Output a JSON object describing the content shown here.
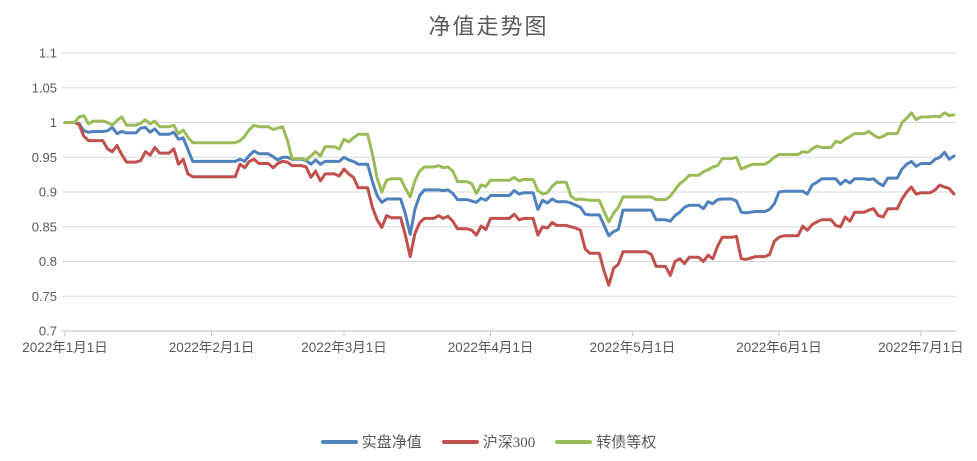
{
  "chart_data": {
    "type": "line",
    "title": "净值走势图",
    "legend_position": "bottom",
    "grid": "horizontal",
    "x_axis": {
      "start_date": "2022-01-01",
      "end_date": "2022-07-08",
      "unit": "calendar-day-index",
      "num_points": 189,
      "tick_day_indices": [
        0,
        31,
        59,
        90,
        120,
        151,
        181
      ],
      "tick_labels": [
        "2022年1月1日",
        "2022年2月1日",
        "2022年3月1日",
        "2022年4月1日",
        "2022年5月1日",
        "2022年6月1日",
        "2022年7月1日"
      ]
    },
    "y_axis": {
      "min": 0.7,
      "max": 1.1,
      "step": 0.05,
      "tick_labels": [
        "0.7",
        "0.75",
        "0.8",
        "0.85",
        "0.9",
        "0.95",
        "1",
        "1.05",
        "1.1"
      ]
    },
    "series": [
      {
        "name": "实盘净值",
        "color": "#4F81BD",
        "values": [
          1.0,
          1.0,
          1.0,
          0.998,
          0.988,
          0.986,
          0.987,
          0.987,
          0.987,
          0.988,
          0.993,
          0.984,
          0.987,
          0.985,
          0.985,
          0.985,
          0.992,
          0.993,
          0.986,
          0.991,
          0.983,
          0.983,
          0.983,
          0.986,
          0.976,
          0.978,
          0.961,
          0.944,
          0.944,
          0.944,
          0.944,
          0.944,
          0.944,
          0.944,
          0.944,
          0.944,
          0.944,
          0.947,
          0.944,
          0.953,
          0.959,
          0.955,
          0.955,
          0.955,
          0.951,
          0.946,
          0.95,
          0.95,
          0.947,
          0.947,
          0.947,
          0.945,
          0.94,
          0.946,
          0.94,
          0.944,
          0.944,
          0.944,
          0.944,
          0.95,
          0.946,
          0.944,
          0.94,
          0.94,
          0.94,
          0.915,
          0.895,
          0.885,
          0.89,
          0.89,
          0.89,
          0.89,
          0.868,
          0.839,
          0.875,
          0.895,
          0.903,
          0.903,
          0.903,
          0.903,
          0.902,
          0.903,
          0.898,
          0.889,
          0.889,
          0.889,
          0.887,
          0.885,
          0.891,
          0.888,
          0.895,
          0.895,
          0.895,
          0.895,
          0.895,
          0.902,
          0.897,
          0.899,
          0.899,
          0.899,
          0.875,
          0.888,
          0.884,
          0.89,
          0.886,
          0.886,
          0.886,
          0.884,
          0.881,
          0.878,
          0.868,
          0.867,
          0.867,
          0.867,
          0.852,
          0.837,
          0.843,
          0.846,
          0.874,
          0.874,
          0.874,
          0.874,
          0.874,
          0.874,
          0.874,
          0.86,
          0.86,
          0.86,
          0.858,
          0.866,
          0.871,
          0.878,
          0.881,
          0.881,
          0.881,
          0.876,
          0.886,
          0.883,
          0.889,
          0.89,
          0.89,
          0.89,
          0.887,
          0.871,
          0.87,
          0.871,
          0.872,
          0.872,
          0.872,
          0.875,
          0.883,
          0.9,
          0.901,
          0.901,
          0.901,
          0.901,
          0.901,
          0.897,
          0.91,
          0.914,
          0.919,
          0.919,
          0.919,
          0.919,
          0.911,
          0.917,
          0.913,
          0.919,
          0.919,
          0.919,
          0.918,
          0.919,
          0.913,
          0.909,
          0.92,
          0.92,
          0.92,
          0.933,
          0.94,
          0.944,
          0.937,
          0.941,
          0.941,
          0.941,
          0.947,
          0.95,
          0.957,
          0.947,
          0.952
        ]
      },
      {
        "name": "沪深300",
        "color": "#C0504D",
        "values": [
          1.0,
          1.0,
          1.0,
          0.997,
          0.98,
          0.974,
          0.974,
          0.974,
          0.974,
          0.962,
          0.958,
          0.967,
          0.954,
          0.943,
          0.943,
          0.943,
          0.945,
          0.958,
          0.953,
          0.964,
          0.956,
          0.956,
          0.956,
          0.962,
          0.94,
          0.947,
          0.926,
          0.922,
          0.922,
          0.922,
          0.922,
          0.922,
          0.922,
          0.922,
          0.922,
          0.922,
          0.922,
          0.94,
          0.935,
          0.944,
          0.947,
          0.941,
          0.941,
          0.941,
          0.935,
          0.941,
          0.944,
          0.943,
          0.938,
          0.938,
          0.938,
          0.936,
          0.921,
          0.93,
          0.916,
          0.926,
          0.926,
          0.926,
          0.923,
          0.933,
          0.926,
          0.921,
          0.906,
          0.906,
          0.906,
          0.878,
          0.86,
          0.849,
          0.866,
          0.863,
          0.863,
          0.863,
          0.837,
          0.807,
          0.84,
          0.856,
          0.862,
          0.862,
          0.862,
          0.866,
          0.862,
          0.865,
          0.858,
          0.847,
          0.847,
          0.847,
          0.845,
          0.838,
          0.851,
          0.846,
          0.862,
          0.862,
          0.862,
          0.862,
          0.862,
          0.868,
          0.86,
          0.862,
          0.862,
          0.862,
          0.838,
          0.85,
          0.848,
          0.856,
          0.852,
          0.852,
          0.852,
          0.85,
          0.848,
          0.845,
          0.818,
          0.812,
          0.812,
          0.812,
          0.786,
          0.766,
          0.79,
          0.796,
          0.814,
          0.814,
          0.814,
          0.814,
          0.814,
          0.814,
          0.81,
          0.793,
          0.793,
          0.793,
          0.78,
          0.8,
          0.804,
          0.797,
          0.806,
          0.806,
          0.806,
          0.8,
          0.809,
          0.804,
          0.822,
          0.835,
          0.835,
          0.835,
          0.836,
          0.804,
          0.803,
          0.805,
          0.807,
          0.807,
          0.807,
          0.81,
          0.829,
          0.835,
          0.837,
          0.837,
          0.837,
          0.837,
          0.851,
          0.845,
          0.853,
          0.857,
          0.86,
          0.86,
          0.86,
          0.852,
          0.85,
          0.864,
          0.858,
          0.871,
          0.871,
          0.871,
          0.874,
          0.876,
          0.866,
          0.864,
          0.876,
          0.876,
          0.876,
          0.89,
          0.9,
          0.907,
          0.897,
          0.899,
          0.899,
          0.899,
          0.903,
          0.91,
          0.907,
          0.905,
          0.897
        ]
      },
      {
        "name": "转债等权",
        "color": "#9BBB59",
        "values": [
          1.0,
          1.0,
          1.0,
          1.008,
          1.01,
          0.998,
          1.002,
          1.002,
          1.002,
          1.0,
          0.996,
          1.003,
          1.008,
          0.996,
          0.996,
          0.996,
          0.999,
          1.004,
          0.998,
          1.002,
          0.994,
          0.994,
          0.994,
          0.996,
          0.984,
          0.989,
          0.979,
          0.971,
          0.971,
          0.971,
          0.971,
          0.971,
          0.971,
          0.971,
          0.971,
          0.971,
          0.971,
          0.974,
          0.98,
          0.99,
          0.996,
          0.994,
          0.994,
          0.994,
          0.99,
          0.992,
          0.994,
          0.975,
          0.948,
          0.948,
          0.948,
          0.946,
          0.952,
          0.958,
          0.952,
          0.965,
          0.965,
          0.965,
          0.962,
          0.976,
          0.972,
          0.978,
          0.983,
          0.983,
          0.983,
          0.955,
          0.92,
          0.9,
          0.917,
          0.919,
          0.919,
          0.919,
          0.905,
          0.893,
          0.916,
          0.93,
          0.936,
          0.936,
          0.936,
          0.938,
          0.935,
          0.936,
          0.93,
          0.915,
          0.915,
          0.915,
          0.912,
          0.898,
          0.91,
          0.908,
          0.917,
          0.917,
          0.917,
          0.917,
          0.917,
          0.921,
          0.916,
          0.918,
          0.918,
          0.918,
          0.902,
          0.897,
          0.899,
          0.908,
          0.914,
          0.914,
          0.914,
          0.894,
          0.889,
          0.89,
          0.889,
          0.888,
          0.888,
          0.888,
          0.872,
          0.857,
          0.869,
          0.878,
          0.893,
          0.893,
          0.893,
          0.893,
          0.893,
          0.893,
          0.893,
          0.889,
          0.889,
          0.889,
          0.894,
          0.903,
          0.912,
          0.917,
          0.924,
          0.924,
          0.924,
          0.929,
          0.932,
          0.936,
          0.938,
          0.948,
          0.948,
          0.948,
          0.95,
          0.933,
          0.936,
          0.939,
          0.94,
          0.94,
          0.94,
          0.944,
          0.95,
          0.954,
          0.954,
          0.954,
          0.954,
          0.954,
          0.958,
          0.957,
          0.962,
          0.966,
          0.964,
          0.964,
          0.964,
          0.973,
          0.971,
          0.976,
          0.98,
          0.984,
          0.984,
          0.984,
          0.987,
          0.982,
          0.978,
          0.98,
          0.984,
          0.984,
          0.984,
          1.0,
          1.006,
          1.014,
          1.004,
          1.008,
          1.008,
          1.008,
          1.009,
          1.008,
          1.014,
          1.01,
          1.011
        ]
      }
    ],
    "colors": {
      "title_text": "#595959",
      "axis_text": "#595959",
      "gridline": "#D9D9D9",
      "axis_line": "#BFBFBF",
      "background": "#FFFFFF"
    }
  }
}
